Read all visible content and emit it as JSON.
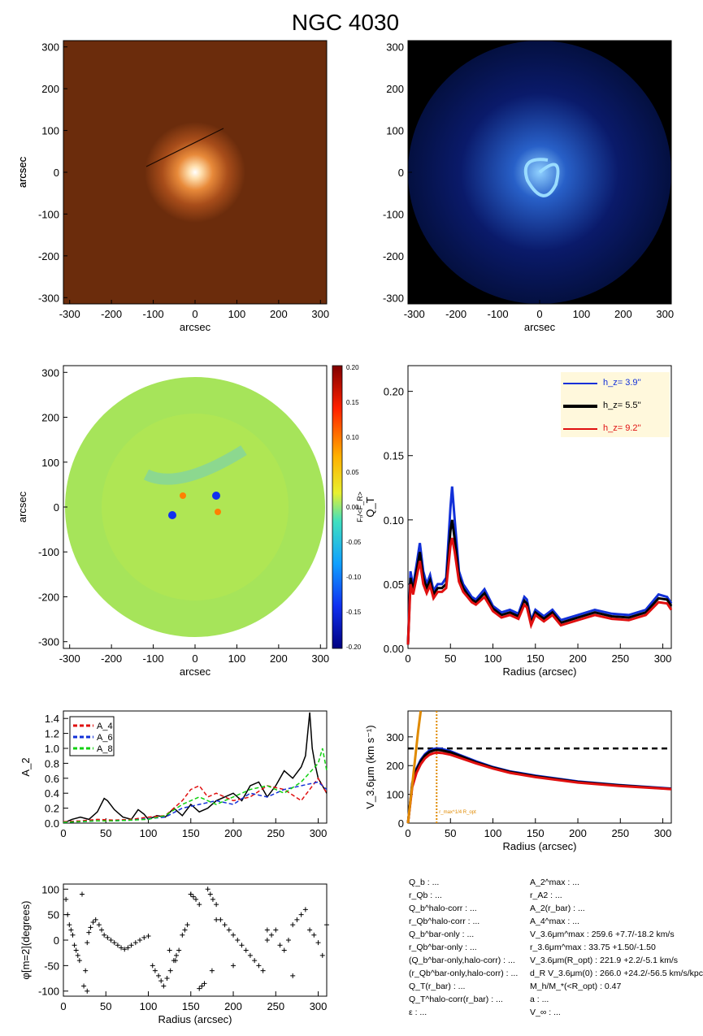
{
  "title": "NGC 4030",
  "colors": {
    "blue": "#1230d8",
    "black": "#000000",
    "red": "#e01010",
    "green": "#10d010",
    "orange": "#e08a00",
    "legend_bg": "#fff8dc"
  },
  "panels": {
    "p1": {
      "ylabel": "arcsec",
      "xlabel": "arcsec",
      "ticks": [
        "-300",
        "-200",
        "-100",
        "0",
        "100",
        "200",
        "300"
      ]
    },
    "p2": {
      "ylabel": "arcsec",
      "xlabel": "arcsec",
      "ticks": [
        "-300",
        "-200",
        "-100",
        "0",
        "100",
        "200",
        "300"
      ]
    },
    "p3": {
      "ylabel": "arcsec",
      "xlabel": "arcsec",
      "ticks": [
        "-300",
        "-200",
        "-100",
        "0",
        "100",
        "200",
        "300"
      ],
      "colorbar_label": "Fᵣ/<F_R>",
      "colorbar_ticks": [
        "0.20",
        "0.15",
        "0.10",
        "0.05",
        "0.00",
        "-0.05",
        "-0.10",
        "-0.15",
        "-0.20"
      ]
    }
  },
  "param_left": [
    "Q_b : ...",
    "r_Qb : ...",
    "Q_b^halo-corr : ...",
    "r_Qb^halo-corr : ...",
    "Q_b^bar-only : ...",
    "r_Qb^bar-only : ...",
    "(Q_b^bar-only,halo-corr) : ...",
    "(r_Qb^bar-only,halo-corr) : ...",
    "Q_T(r_bar) : ...",
    "Q_T^halo-corr(r_bar) : ...",
    "ε : ..."
  ],
  "param_right": [
    "A_2^max : ...",
    "r_A2 : ...",
    "A_2(r_bar) : ...",
    "A_4^max : ...",
    "V_3.6μm^max :  259.6 +7.7/-18.2 km/s",
    "r_3.6μm^max :  33.75 +1.50/-1.50",
    "V_3.6μm(R_opt) :  221.9 +2.2/-5.1 km/s",
    "d_R V_3.6μm(0) :  266.0 +24.2/-56.5 km/s/kpc",
    "M_h/M_*(<R_opt) :  0.47",
    "a : ...",
    "V_∞ : ..."
  ],
  "chart_data": [
    {
      "type": "line",
      "title": "",
      "xlabel": "Radius (arcsec)",
      "ylabel": "Q_T",
      "xlim": [
        0,
        310
      ],
      "ylim": [
        0,
        0.22
      ],
      "xticks": [
        "0",
        "50",
        "100",
        "150",
        "200",
        "250",
        "300"
      ],
      "yticks": [
        "0.00",
        "0.05",
        "0.10",
        "0.15",
        "0.20"
      ],
      "legend_position": "top-right",
      "series": [
        {
          "name": "h_z=  3.9''",
          "color": "blue",
          "x": [
            0,
            3,
            6,
            10,
            14,
            18,
            22,
            26,
            30,
            35,
            40,
            45,
            50,
            52,
            55,
            60,
            65,
            70,
            75,
            80,
            90,
            100,
            110,
            120,
            130,
            137,
            140,
            145,
            150,
            160,
            170,
            180,
            200,
            220,
            240,
            260,
            280,
            295,
            305,
            310
          ],
          "y": [
            0.003,
            0.06,
            0.048,
            0.065,
            0.082,
            0.06,
            0.05,
            0.057,
            0.045,
            0.05,
            0.05,
            0.055,
            0.11,
            0.126,
            0.1,
            0.06,
            0.05,
            0.045,
            0.04,
            0.038,
            0.046,
            0.033,
            0.028,
            0.03,
            0.027,
            0.04,
            0.038,
            0.022,
            0.03,
            0.025,
            0.03,
            0.022,
            0.026,
            0.03,
            0.027,
            0.026,
            0.03,
            0.042,
            0.04,
            0.035
          ]
        },
        {
          "name": "h_z=  5.5''",
          "color": "black",
          "x": [
            0,
            3,
            6,
            10,
            14,
            18,
            22,
            26,
            30,
            35,
            40,
            45,
            50,
            52,
            55,
            60,
            65,
            70,
            75,
            80,
            90,
            100,
            110,
            120,
            130,
            137,
            140,
            145,
            150,
            160,
            170,
            180,
            200,
            220,
            240,
            260,
            280,
            295,
            305,
            310
          ],
          "y": [
            0.003,
            0.055,
            0.045,
            0.06,
            0.075,
            0.055,
            0.047,
            0.053,
            0.042,
            0.047,
            0.047,
            0.05,
            0.092,
            0.1,
            0.085,
            0.056,
            0.047,
            0.042,
            0.038,
            0.036,
            0.043,
            0.031,
            0.026,
            0.028,
            0.025,
            0.037,
            0.035,
            0.02,
            0.028,
            0.023,
            0.028,
            0.02,
            0.024,
            0.028,
            0.025,
            0.024,
            0.028,
            0.039,
            0.038,
            0.033
          ]
        },
        {
          "name": "h_z=  9.2''",
          "color": "red",
          "x": [
            0,
            3,
            6,
            10,
            14,
            18,
            22,
            26,
            30,
            35,
            40,
            45,
            50,
            52,
            55,
            60,
            65,
            70,
            75,
            80,
            90,
            100,
            110,
            120,
            130,
            137,
            140,
            145,
            150,
            160,
            170,
            180,
            200,
            220,
            240,
            260,
            280,
            295,
            305,
            310
          ],
          "y": [
            0.003,
            0.05,
            0.042,
            0.055,
            0.068,
            0.05,
            0.043,
            0.049,
            0.039,
            0.044,
            0.044,
            0.047,
            0.08,
            0.086,
            0.075,
            0.052,
            0.044,
            0.04,
            0.036,
            0.034,
            0.04,
            0.029,
            0.024,
            0.026,
            0.023,
            0.034,
            0.032,
            0.018,
            0.026,
            0.021,
            0.026,
            0.018,
            0.022,
            0.026,
            0.023,
            0.022,
            0.026,
            0.036,
            0.035,
            0.03
          ]
        }
      ]
    },
    {
      "type": "line",
      "title": "",
      "xlabel": "",
      "ylabel": "A_2",
      "xlim": [
        0,
        310
      ],
      "ylim": [
        0,
        1.5
      ],
      "xticks": [
        "0",
        "50",
        "100",
        "150",
        "200",
        "250",
        "300"
      ],
      "yticks": [
        "0.0",
        "0.2",
        "0.4",
        "0.6",
        "0.8",
        "1.0",
        "1.2",
        "1.4"
      ],
      "legend_position": "top-left",
      "series": [
        {
          "name": "A_2",
          "color": "black",
          "x": [
            0,
            10,
            20,
            30,
            40,
            48,
            52,
            60,
            70,
            80,
            88,
            95,
            100,
            110,
            120,
            130,
            140,
            150,
            160,
            170,
            180,
            190,
            200,
            210,
            220,
            230,
            240,
            250,
            260,
            270,
            280,
            285,
            290,
            293,
            296,
            300,
            305,
            310
          ],
          "y": [
            0.0,
            0.05,
            0.08,
            0.05,
            0.15,
            0.33,
            0.3,
            0.18,
            0.08,
            0.05,
            0.18,
            0.12,
            0.05,
            0.1,
            0.08,
            0.2,
            0.1,
            0.25,
            0.15,
            0.2,
            0.3,
            0.35,
            0.4,
            0.3,
            0.5,
            0.55,
            0.35,
            0.5,
            0.7,
            0.6,
            0.75,
            0.9,
            1.48,
            1.0,
            0.8,
            0.6,
            0.5,
            0.4
          ]
        },
        {
          "name": "A_4",
          "color": "red",
          "x": [
            0,
            20,
            40,
            60,
            80,
            100,
            120,
            140,
            150,
            160,
            170,
            180,
            200,
            220,
            240,
            260,
            280,
            300,
            310
          ],
          "y": [
            0.02,
            0.03,
            0.05,
            0.04,
            0.05,
            0.08,
            0.1,
            0.3,
            0.45,
            0.5,
            0.35,
            0.4,
            0.3,
            0.35,
            0.5,
            0.45,
            0.3,
            0.6,
            0.4
          ]
        },
        {
          "name": "A_6",
          "color": "blue",
          "x": [
            0,
            20,
            40,
            60,
            80,
            100,
            120,
            140,
            160,
            180,
            200,
            220,
            240,
            260,
            280,
            300,
            310
          ],
          "y": [
            0.01,
            0.02,
            0.03,
            0.03,
            0.04,
            0.06,
            0.08,
            0.2,
            0.25,
            0.3,
            0.25,
            0.4,
            0.35,
            0.45,
            0.5,
            0.55,
            0.45
          ]
        },
        {
          "name": "A_8",
          "color": "green",
          "x": [
            0,
            20,
            40,
            60,
            80,
            100,
            120,
            140,
            160,
            180,
            200,
            220,
            240,
            260,
            280,
            300,
            305,
            310
          ],
          "y": [
            0.01,
            0.02,
            0.03,
            0.03,
            0.04,
            0.05,
            0.1,
            0.25,
            0.35,
            0.25,
            0.35,
            0.45,
            0.5,
            0.4,
            0.55,
            0.8,
            1.0,
            0.7
          ]
        }
      ]
    },
    {
      "type": "line",
      "title": "",
      "xlabel": "Radius (arcsec)",
      "ylabel": "V_3.6μm (km s⁻¹)",
      "xlim": [
        0,
        310
      ],
      "ylim": [
        0,
        390
      ],
      "xticks": [
        "0",
        "50",
        "100",
        "150",
        "200",
        "250",
        "300"
      ],
      "yticks": [
        "0",
        "100",
        "200",
        "300"
      ],
      "hline": 259.6,
      "vline": 33.75,
      "vline_label": "r_max^1/4 R_opt",
      "series": [
        {
          "name": "",
          "color": "blue",
          "x": [
            0,
            5,
            10,
            15,
            20,
            25,
            30,
            34,
            40,
            50,
            60,
            80,
            100,
            120,
            150,
            200,
            250,
            300,
            310
          ],
          "y": [
            0,
            140,
            190,
            220,
            240,
            252,
            258,
            260,
            258,
            250,
            238,
            215,
            195,
            180,
            165,
            145,
            132,
            122,
            120
          ]
        },
        {
          "name": "",
          "color": "black",
          "x": [
            0,
            5,
            10,
            15,
            20,
            25,
            30,
            34,
            40,
            50,
            60,
            80,
            100,
            120,
            150,
            200,
            250,
            300,
            310
          ],
          "y": [
            0,
            135,
            185,
            215,
            235,
            247,
            253,
            255,
            253,
            246,
            235,
            212,
            193,
            178,
            163,
            143,
            131,
            121,
            119
          ]
        },
        {
          "name": "",
          "color": "red",
          "x": [
            0,
            5,
            10,
            15,
            20,
            25,
            30,
            34,
            40,
            50,
            60,
            80,
            100,
            120,
            150,
            200,
            250,
            300,
            310
          ],
          "y": [
            0,
            125,
            175,
            205,
            225,
            237,
            243,
            245,
            244,
            238,
            228,
            208,
            190,
            175,
            160,
            141,
            129,
            120,
            118
          ]
        },
        {
          "name": "",
          "color": "orange",
          "x": [
            0,
            3,
            6,
            9,
            12,
            15
          ],
          "y": [
            0,
            80,
            160,
            240,
            320,
            390
          ]
        }
      ]
    },
    {
      "type": "scatter",
      "title": "",
      "xlabel": "Radius (arcsec)",
      "ylabel": "φ[m=2](degrees)",
      "xlim": [
        0,
        310
      ],
      "ylim": [
        -110,
        110
      ],
      "xticks": [
        "0",
        "50",
        "100",
        "150",
        "200",
        "250",
        "300"
      ],
      "yticks": [
        "-100",
        "-50",
        "0",
        "50",
        "100"
      ],
      "series": [
        {
          "name": "",
          "color": "black",
          "x": [
            3,
            5,
            7,
            9,
            11,
            13,
            15,
            17,
            19,
            22,
            24,
            26,
            28,
            30,
            32,
            35,
            38,
            42,
            45,
            48,
            52,
            56,
            60,
            64,
            68,
            72,
            76,
            80,
            85,
            90,
            95,
            100,
            105,
            108,
            112,
            115,
            118,
            122,
            126,
            130,
            133,
            136,
            140,
            143,
            146,
            150,
            153,
            156,
            160,
            163,
            166,
            170,
            173,
            176,
            180,
            185,
            190,
            195,
            200,
            205,
            210,
            215,
            220,
            225,
            230,
            235,
            240,
            245,
            250,
            255,
            260,
            265,
            270,
            275,
            280,
            285,
            290,
            295,
            300,
            305,
            310,
            28,
            125,
            132,
            150,
            160,
            175,
            180,
            200,
            240,
            270
          ],
          "y": [
            80,
            50,
            30,
            20,
            10,
            -10,
            -20,
            -30,
            -40,
            90,
            -90,
            -60,
            -5,
            15,
            25,
            35,
            40,
            30,
            20,
            10,
            5,
            0,
            -5,
            -10,
            -15,
            -18,
            -15,
            -10,
            -5,
            0,
            5,
            8,
            -50,
            -60,
            -70,
            -80,
            -90,
            -75,
            -60,
            -40,
            -30,
            -20,
            10,
            20,
            30,
            90,
            85,
            80,
            -95,
            -90,
            -85,
            100,
            90,
            80,
            70,
            40,
            30,
            20,
            10,
            0,
            -10,
            -20,
            -30,
            -40,
            -50,
            -60,
            0,
            10,
            20,
            -10,
            -20,
            0,
            30,
            40,
            50,
            60,
            20,
            10,
            -5,
            -30,
            30,
            -100,
            -20,
            -40,
            90,
            70,
            -60,
            40,
            -50,
            20,
            -70
          ]
        }
      ]
    }
  ]
}
